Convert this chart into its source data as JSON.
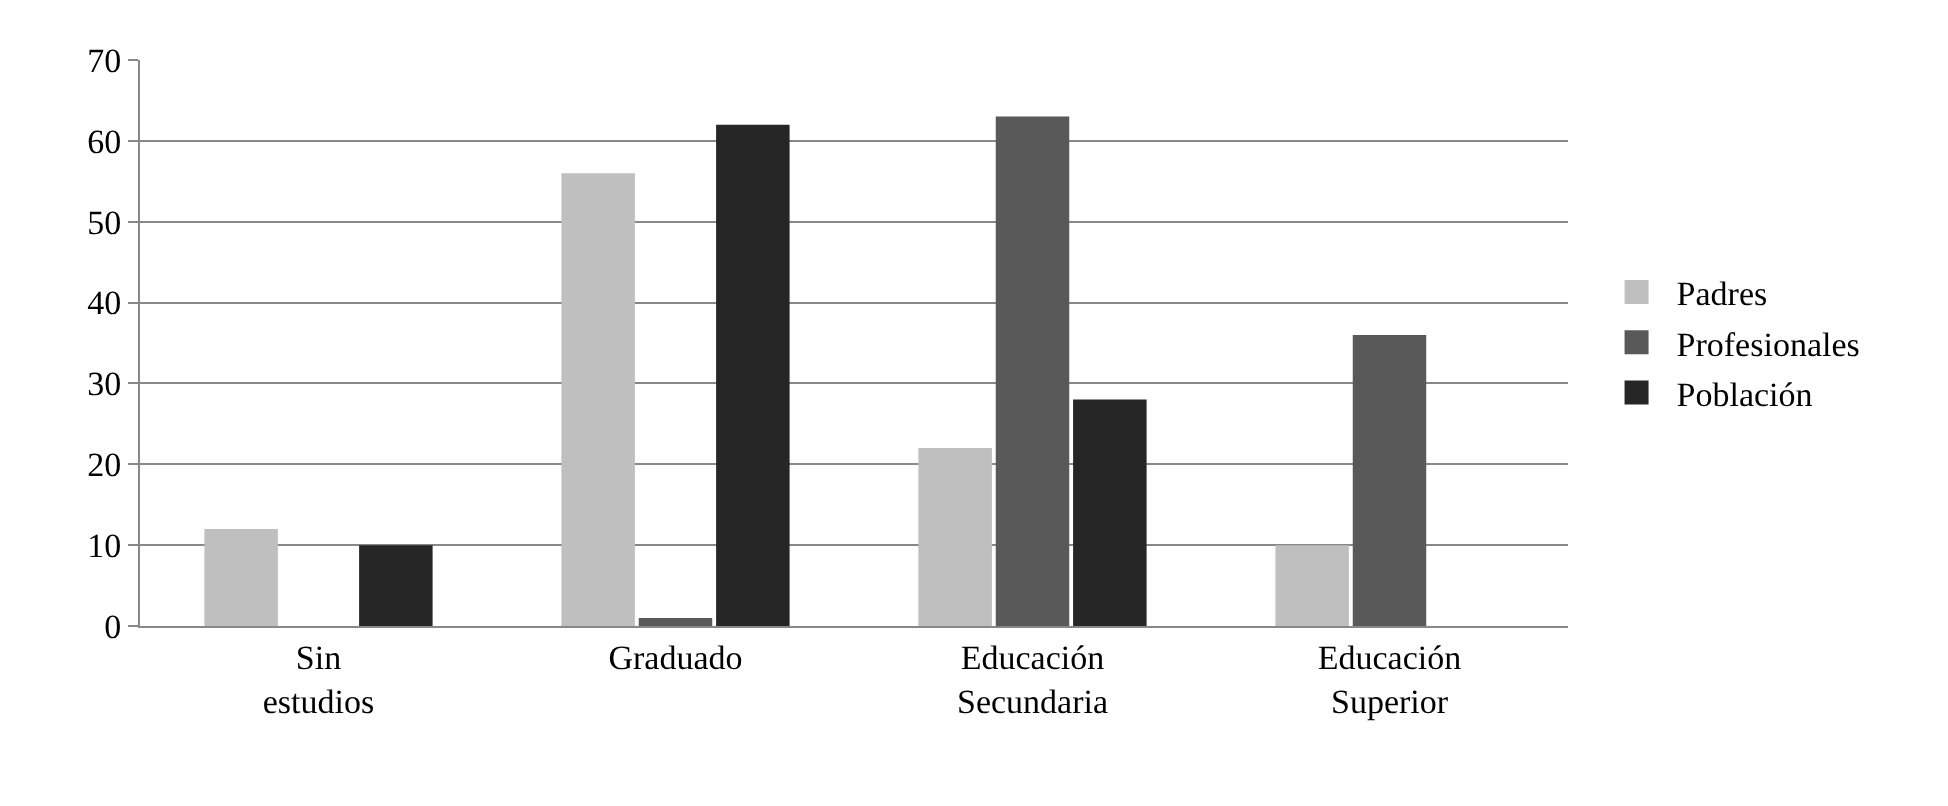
{
  "chart_data": {
    "type": "bar",
    "categories": [
      "Sin estudios",
      "Graduado",
      "Educación Secundaria",
      "Educación Superior"
    ],
    "series": [
      {
        "name": "Padres",
        "color": "#bfbfbf",
        "values": [
          12,
          56,
          22,
          10
        ]
      },
      {
        "name": "Profesionales",
        "color": "#595959",
        "values": [
          0,
          1,
          63,
          36
        ]
      },
      {
        "name": "Población",
        "color": "#262626",
        "values": [
          10,
          62,
          28,
          0
        ]
      }
    ],
    "ylim": [
      0,
      70
    ],
    "yticks": [
      0,
      10,
      20,
      30,
      40,
      50,
      60,
      70
    ],
    "grid": "y",
    "legend": "right"
  }
}
